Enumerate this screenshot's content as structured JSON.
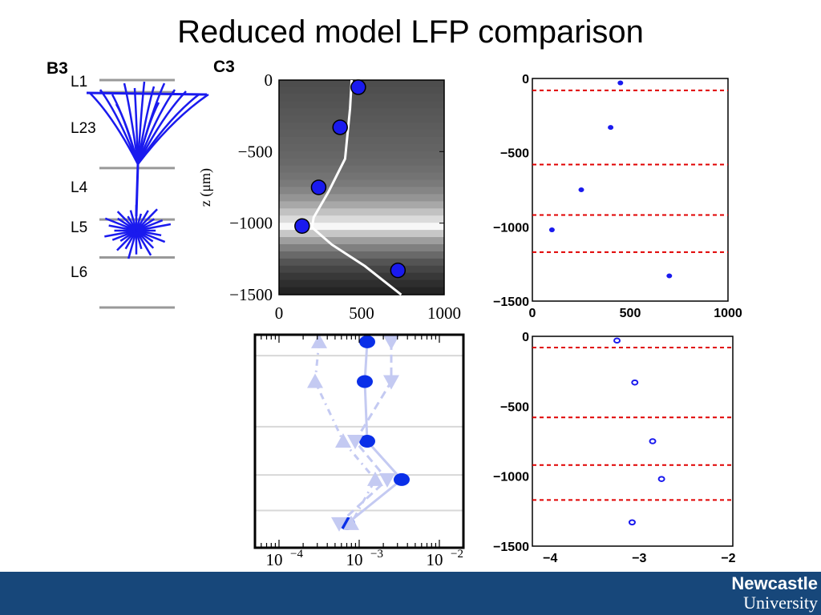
{
  "slide": {
    "title": "Reduced model LFP comparison",
    "logo_line1": "Newcastle",
    "logo_line2": "University",
    "footer_color": "#17477a"
  },
  "panels": {
    "b3_label": "B3",
    "c3_label": "C3",
    "layers": [
      "L1",
      "L23",
      "L4",
      "L5",
      "L6"
    ]
  },
  "chart_data": [
    {
      "type": "heatmap",
      "panel": "C3",
      "ylabel": "z (μm)",
      "xlim": [
        0,
        1000
      ],
      "ylim": [
        -1500,
        0
      ],
      "x_ticks": [
        "0",
        "500",
        "1000"
      ],
      "y_ticks": [
        "0",
        "−500",
        "−1000",
        "−1500"
      ],
      "bands": [
        {
          "z": 0,
          "v": 0.3
        },
        {
          "z": -50,
          "v": 0.31
        },
        {
          "z": -100,
          "v": 0.32
        },
        {
          "z": -150,
          "v": 0.33
        },
        {
          "z": -200,
          "v": 0.34
        },
        {
          "z": -250,
          "v": 0.35
        },
        {
          "z": -300,
          "v": 0.36
        },
        {
          "z": -350,
          "v": 0.37
        },
        {
          "z": -400,
          "v": 0.38
        },
        {
          "z": -450,
          "v": 0.39
        },
        {
          "z": -500,
          "v": 0.4
        },
        {
          "z": -550,
          "v": 0.41
        },
        {
          "z": -600,
          "v": 0.43
        },
        {
          "z": -650,
          "v": 0.45
        },
        {
          "z": -700,
          "v": 0.48
        },
        {
          "z": -750,
          "v": 0.52
        },
        {
          "z": -800,
          "v": 0.58
        },
        {
          "z": -850,
          "v": 0.66
        },
        {
          "z": -900,
          "v": 0.76
        },
        {
          "z": -950,
          "v": 0.86
        },
        {
          "z": -1000,
          "v": 0.97
        },
        {
          "z": -1050,
          "v": 0.78
        },
        {
          "z": -1100,
          "v": 0.62
        },
        {
          "z": -1150,
          "v": 0.5
        },
        {
          "z": -1200,
          "v": 0.41
        },
        {
          "z": -1250,
          "v": 0.33
        },
        {
          "z": -1300,
          "v": 0.27
        },
        {
          "z": -1350,
          "v": 0.22
        },
        {
          "z": -1400,
          "v": 0.18
        },
        {
          "z": -1450,
          "v": 0.14
        },
        {
          "z": -1500,
          "v": 0.1
        }
      ],
      "curve": [
        [
          440,
          0
        ],
        [
          430,
          -200
        ],
        [
          400,
          -550
        ],
        [
          300,
          -780
        ],
        [
          210,
          -960
        ],
        [
          200,
          -1030
        ],
        [
          320,
          -1150
        ],
        [
          520,
          -1300
        ],
        [
          740,
          -1500
        ]
      ],
      "points": [
        [
          480,
          -50
        ],
        [
          370,
          -330
        ],
        [
          240,
          -750
        ],
        [
          140,
          -1020
        ],
        [
          720,
          -1330
        ]
      ]
    },
    {
      "type": "scatter",
      "panel": "top-right",
      "xlim": [
        0,
        1000
      ],
      "ylim": [
        -1500,
        0
      ],
      "x_ticks": [
        "0",
        "500",
        "1000"
      ],
      "y_ticks": [
        "0",
        "−500",
        "−1000",
        "−1500"
      ],
      "points": [
        [
          450,
          -30
        ],
        [
          400,
          -330
        ],
        [
          250,
          -750
        ],
        [
          100,
          -1020
        ],
        [
          700,
          -1330
        ]
      ],
      "boundaries": [
        -80,
        -580,
        -920,
        -1170
      ]
    },
    {
      "type": "line",
      "panel": "bottom-left",
      "xscale": "log",
      "xlim": [
        -4.3,
        -1.7
      ],
      "ylim": [
        -1500,
        0
      ],
      "x_ticks": [
        "10−4",
        "10−3",
        "10−2"
      ],
      "hlines": [
        -80,
        -580,
        -920,
        -1170
      ],
      "series": [
        {
          "marker": "circle",
          "points": [
            [
              -2.9,
              -50
            ],
            [
              -2.93,
              -330
            ],
            [
              -2.9,
              -750
            ],
            [
              -2.47,
              -1020
            ],
            [
              -3.15,
              -1330
            ]
          ]
        },
        {
          "marker": "triangle-up",
          "points": [
            [
              -3.5,
              -50
            ],
            [
              -3.55,
              -330
            ],
            [
              -3.2,
              -750
            ],
            [
              -2.8,
              -1020
            ],
            [
              -3.1,
              -1330
            ]
          ]
        },
        {
          "marker": "triangle-down",
          "points": [
            [
              -2.6,
              -50
            ],
            [
              -2.6,
              -330
            ],
            [
              -3.05,
              -750
            ],
            [
              -2.65,
              -1020
            ],
            [
              -3.25,
              -1330
            ]
          ]
        }
      ]
    },
    {
      "type": "scatter",
      "panel": "bottom-right",
      "xlim": [
        -4.2,
        -1.95
      ],
      "ylim": [
        -1500,
        0
      ],
      "x_ticks": [
        "−4",
        "−3",
        "−2"
      ],
      "y_ticks": [
        "0",
        "−500",
        "−1000",
        "−1500"
      ],
      "points": [
        [
          -3.25,
          -30
        ],
        [
          -3.05,
          -330
        ],
        [
          -2.85,
          -750
        ],
        [
          -2.75,
          -1020
        ],
        [
          -3.08,
          -1330
        ]
      ],
      "boundaries": [
        -80,
        -580,
        -920,
        -1170
      ]
    }
  ]
}
